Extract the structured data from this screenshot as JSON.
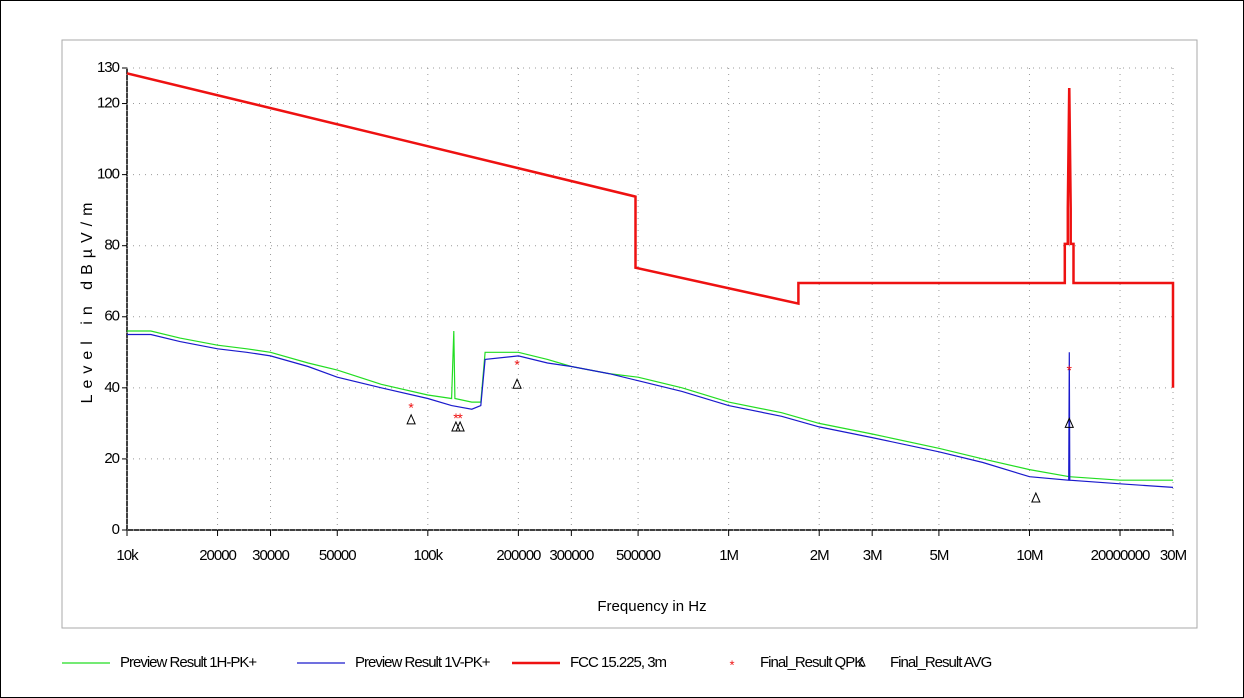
{
  "chart_data": {
    "type": "line",
    "xlabel": "Frequency in Hz",
    "ylabel": "Level in dBµV/m",
    "xscale": "log",
    "grid": true,
    "xlim": [
      10000,
      30000000
    ],
    "ylim": [
      0,
      130
    ],
    "yticks": [
      0,
      20,
      40,
      60,
      80,
      100,
      120,
      130
    ],
    "xticks": [
      {
        "value": 10000,
        "label": "10k"
      },
      20000,
      30000,
      50000,
      {
        "value": 100000,
        "label": "100k"
      },
      200000,
      300000,
      500000,
      {
        "value": 1000000,
        "label": "1M"
      },
      {
        "value": 2000000,
        "label": "2M"
      },
      {
        "value": 3000000,
        "label": "3M"
      },
      {
        "value": 5000000,
        "label": "5M"
      },
      {
        "value": 10000000,
        "label": "10M"
      },
      20000000,
      {
        "value": 30000000,
        "label": "30M"
      }
    ],
    "xtick_labels": [
      "10k",
      "20",
      "30",
      "50",
      "100k",
      "200",
      "300",
      "500",
      "1M",
      "2M",
      "3M",
      "5M",
      "10M",
      "20",
      "30M"
    ],
    "series": [
      {
        "name": "Preview Result 1H-PK+",
        "color": "#22dd22",
        "style": "line",
        "x": [
          10000,
          12000,
          15000,
          20000,
          25000,
          30000,
          40000,
          50000,
          70000,
          100000,
          120000,
          122000,
          123000,
          140000,
          150000,
          155000,
          200000,
          250000,
          300000,
          400000,
          500000,
          700000,
          1000000,
          1500000,
          2000000,
          3000000,
          5000000,
          7000000,
          10000000,
          13560000,
          20000000,
          30000000
        ],
        "values": [
          56,
          56,
          54,
          52,
          51,
          50,
          47,
          45,
          41,
          38,
          37,
          56,
          37,
          36,
          36,
          50,
          50,
          48,
          46,
          44,
          43,
          40,
          36,
          33,
          30,
          27,
          23,
          20,
          17,
          15,
          14,
          14
        ]
      },
      {
        "name": "Preview Result 1V-PK+",
        "color": "#1a1acc",
        "style": "line",
        "x": [
          10000,
          12000,
          15000,
          20000,
          25000,
          30000,
          40000,
          50000,
          70000,
          100000,
          120000,
          140000,
          150000,
          155000,
          200000,
          250000,
          300000,
          400000,
          500000,
          700000,
          1000000,
          1500000,
          2000000,
          3000000,
          5000000,
          7000000,
          10000000,
          13500000,
          13560000,
          13620000,
          20000000,
          30000000
        ],
        "values": [
          55,
          55,
          53,
          51,
          50,
          49,
          46,
          43,
          40,
          37,
          35,
          34,
          35,
          48,
          49,
          47,
          46,
          44,
          42,
          39,
          35,
          32,
          29,
          26,
          22,
          19,
          15,
          14,
          50,
          14,
          13,
          12
        ]
      },
      {
        "name": "FCC 15.225, 3m",
        "color": "#ee1111",
        "style": "line",
        "x": [
          10000,
          490000,
          490000,
          1705000,
          1705000,
          13110000,
          13110000,
          13410000,
          13410000,
          13553000,
          13567000,
          13710000,
          13710000,
          14010000,
          14010000,
          30000000,
          30000000
        ],
        "values": [
          128.5,
          93.8,
          73.8,
          63.7,
          69.5,
          69.5,
          80.5,
          80.5,
          90.5,
          124,
          124,
          90.5,
          80.5,
          80.5,
          69.5,
          69.5,
          40
        ]
      },
      {
        "name": "Final_Result QPK",
        "color": "#ee1111",
        "style": "asterisk",
        "x": [
          88000,
          124000,
          128000,
          198000,
          13560000
        ],
        "values": [
          35,
          32,
          32,
          47,
          45.5
        ]
      },
      {
        "name": "Final_Result AVG",
        "color": "#000000",
        "style": "triangle",
        "x": [
          88000,
          124000,
          128000,
          198000,
          10500000,
          13560000
        ],
        "values": [
          31,
          29,
          29,
          41,
          9,
          30
        ]
      }
    ]
  }
}
